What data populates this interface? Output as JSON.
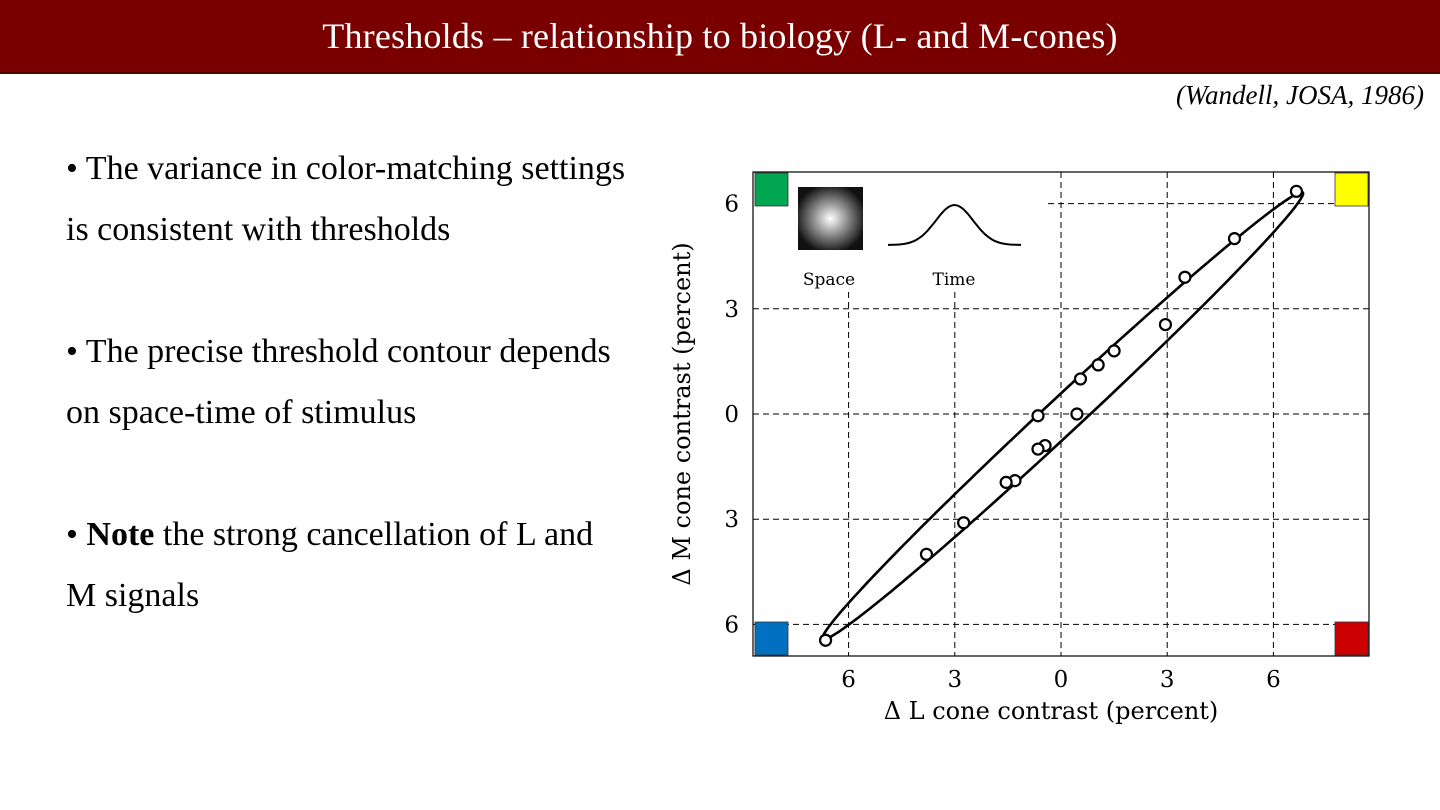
{
  "slide": {
    "title": "Thresholds – relationship to biology (L- and M-cones)",
    "citation": "(Wandell, JOSA, 1986)"
  },
  "bullets": [
    {
      "prefix": "• ",
      "bold": "",
      "text": "The variance in color-matching settings is consistent with thresholds"
    },
    {
      "prefix": "• ",
      "bold": "",
      "text": "The precise threshold contour depends on space-time of stimulus"
    },
    {
      "prefix": "• ",
      "bold": "Note",
      "text": " the strong cancellation of L and M signals"
    }
  ],
  "colors": {
    "title_bar": "#7a0000",
    "corner_green": "#00a651",
    "corner_yellow": "#ffff00",
    "corner_blue": "#0070c0",
    "corner_red": "#cc0000"
  },
  "chart_data": {
    "type": "scatter",
    "xlabel": "Δ L cone contrast (percent)",
    "ylabel": "Δ M cone contrast (percent)",
    "xlim": [
      -8.7,
      8.7
    ],
    "ylim": [
      -6.9,
      6.9
    ],
    "xticks": [
      -6,
      -3,
      0,
      3,
      6
    ],
    "xtick_labels": [
      "6",
      "3",
      "0",
      "3",
      "6"
    ],
    "yticks": [
      6,
      3,
      0,
      -3,
      -6
    ],
    "ytick_labels": [
      "6",
      "3",
      "0",
      "3",
      "6"
    ],
    "grid": true,
    "points": [
      {
        "x": 6.65,
        "y": 6.35
      },
      {
        "x": 4.9,
        "y": 5.0
      },
      {
        "x": 3.5,
        "y": 3.9
      },
      {
        "x": 2.95,
        "y": 2.55
      },
      {
        "x": 1.5,
        "y": 1.8
      },
      {
        "x": 1.05,
        "y": 1.4
      },
      {
        "x": 0.55,
        "y": 1.0
      },
      {
        "x": -0.65,
        "y": -0.05
      },
      {
        "x": 0.45,
        "y": 0.0
      },
      {
        "x": -0.45,
        "y": -0.9
      },
      {
        "x": -0.65,
        "y": -1.0
      },
      {
        "x": -1.3,
        "y": -1.9
      },
      {
        "x": -1.55,
        "y": -1.95
      },
      {
        "x": -2.75,
        "y": -3.1
      },
      {
        "x": -3.8,
        "y": -4.0
      },
      {
        "x": -6.65,
        "y": -6.45
      }
    ],
    "contour": {
      "type": "ellipse",
      "center": [
        0.05,
        -0.05
      ],
      "semi_major": 9.3,
      "semi_minor": 0.5,
      "angle_deg": 43.2
    },
    "inset": {
      "space_label": "Space",
      "time_label": "Time"
    }
  }
}
